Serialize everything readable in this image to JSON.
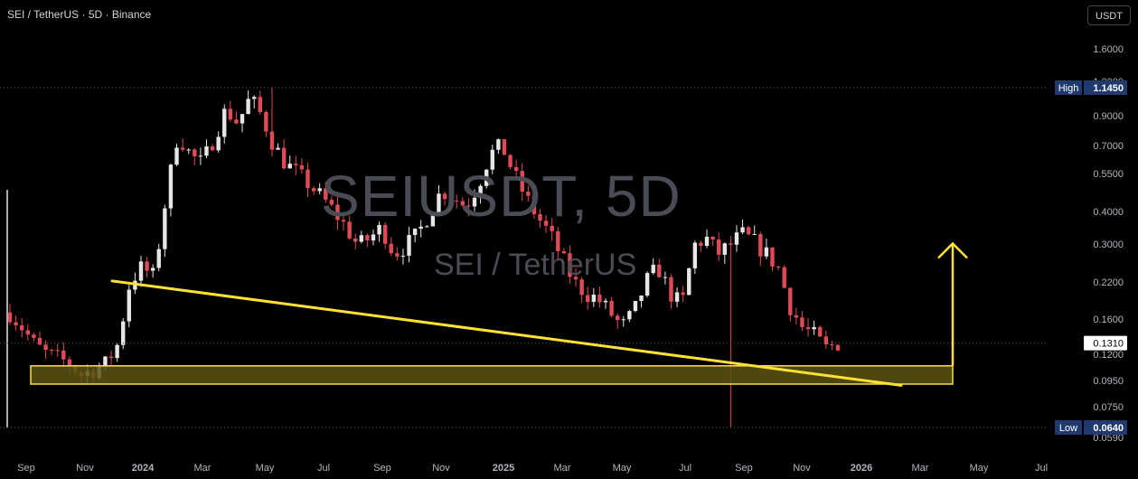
{
  "header": {
    "symbol_line": "SEI / TetherUS · 5D · Binance"
  },
  "currency_button": "USDT",
  "watermark": {
    "main": "SEIUSDT, 5D",
    "sub": "SEI / TetherUS"
  },
  "price_axis": {
    "ticks": [
      "1.6000",
      "1.2000",
      "0.9000",
      "0.7000",
      "0.5500",
      "0.4000",
      "0.3000",
      "0.2200",
      "0.1600",
      "0.1200",
      "0.0950",
      "0.0750",
      "0.0590"
    ],
    "high_label": "High",
    "high_value": "1.1450",
    "low_label": "Low",
    "low_value": "0.0640",
    "last_value": "0.1310"
  },
  "time_axis": {
    "labels": [
      "Sep",
      "Nov",
      "2024",
      "Mar",
      "May",
      "Jul",
      "Sep",
      "Nov",
      "2025",
      "Mar",
      "May",
      "Jul",
      "Sep",
      "Nov",
      "2026",
      "Mar",
      "May",
      "Jul"
    ]
  },
  "colors": {
    "up": "#26a69a",
    "down": "#ef5350",
    "candle_up": "#e6e6e6",
    "candle_down": "#e04a57",
    "trendline": "#ffe135",
    "zone_fill": "#5c5410",
    "zone_border": "#ffe135",
    "high_badge": "#1e3a6e",
    "low_badge": "#1e3a6e"
  },
  "chart_data": {
    "type": "candlestick",
    "title": "SEIUSDT, 5D",
    "yscale": "log",
    "ylim": [
      0.057,
      1.9
    ],
    "high": 1.145,
    "low": 0.064,
    "last": 0.131,
    "x_labels": [
      "Sep",
      "Nov",
      "2024",
      "Mar",
      "May",
      "Jul",
      "Sep",
      "Nov",
      "2025",
      "Mar",
      "May",
      "Jul",
      "Sep",
      "Nov",
      "2026",
      "Mar",
      "May",
      "Jul"
    ],
    "close_path": [
      0.17,
      0.15,
      0.13,
      0.12,
      0.115,
      0.11,
      0.1,
      0.105,
      0.11,
      0.13,
      0.22,
      0.25,
      0.23,
      0.45,
      0.78,
      0.65,
      0.6,
      0.75,
      0.95,
      0.85,
      1.05,
      0.9,
      0.7,
      0.6,
      0.55,
      0.5,
      0.45,
      0.4,
      0.35,
      0.3,
      0.32,
      0.35,
      0.28,
      0.3,
      0.33,
      0.4,
      0.48,
      0.45,
      0.42,
      0.5,
      0.65,
      0.7,
      0.55,
      0.45,
      0.38,
      0.33,
      0.27,
      0.22,
      0.2,
      0.19,
      0.17,
      0.15,
      0.17,
      0.22,
      0.25,
      0.2,
      0.18,
      0.3,
      0.32,
      0.28,
      0.3,
      0.33,
      0.31,
      0.28,
      0.25,
      0.18,
      0.15,
      0.14,
      0.125,
      0.131
    ],
    "annotations": {
      "trendline": {
        "from": {
          "x": "Nov 2023",
          "y": 0.222
        },
        "to": {
          "x": "Feb 2026",
          "y": 0.0915
        }
      },
      "support_zone": {
        "top": 0.108,
        "bottom": 0.0925,
        "from": "Sep 2023",
        "to": "Apr 2026"
      },
      "target_arrow": {
        "x": "Apr 2026",
        "from": 0.108,
        "to": 0.305
      }
    }
  }
}
